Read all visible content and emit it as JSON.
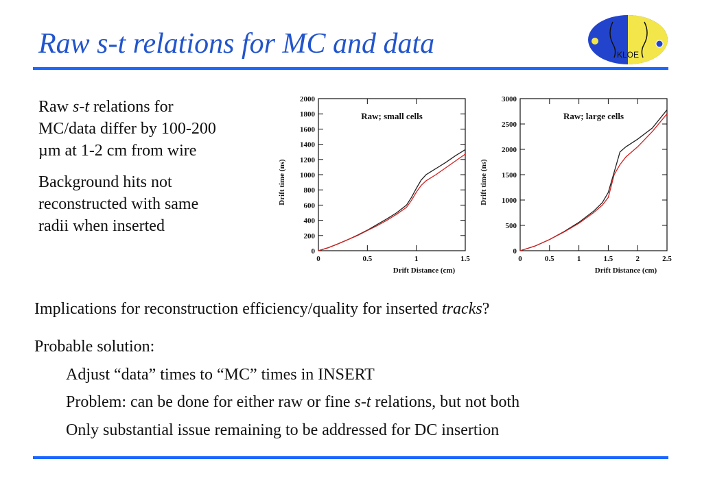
{
  "header": {
    "title": "Raw s-t relations for MC and data"
  },
  "logo": {
    "text": "KLOE"
  },
  "left": {
    "p1": {
      "a": "Raw ",
      "b": "s-t",
      "c": " relations for",
      "d": "MC/data differ by 100-200",
      "e": "µm at 1-2 cm from wire"
    },
    "p2": {
      "l1": "Background hits not",
      "l2": "reconstructed with same",
      "l3": "radii when inserted"
    }
  },
  "chart_data": [
    {
      "type": "line",
      "title": "Raw; small cells",
      "xlabel": "Drift Distance (cm)",
      "ylabel": "Drift time (ns)",
      "xlim": [
        0,
        1.5
      ],
      "ylim": [
        0,
        2000
      ],
      "xticks": [
        "0",
        "0.5",
        "1",
        "1.5"
      ],
      "yticks": [
        "0",
        "200",
        "400",
        "600",
        "800",
        "1000",
        "1200",
        "1400",
        "1600",
        "1800",
        "2000"
      ],
      "grid": false,
      "series": [
        {
          "color": "#222222",
          "points": [
            [
              0,
              0
            ],
            [
              0.1,
              40
            ],
            [
              0.2,
              90
            ],
            [
              0.3,
              145
            ],
            [
              0.4,
              205
            ],
            [
              0.5,
              270
            ],
            [
              0.6,
              345
            ],
            [
              0.7,
              420
            ],
            [
              0.8,
              500
            ],
            [
              0.9,
              600
            ],
            [
              0.95,
              700
            ],
            [
              1.0,
              820
            ],
            [
              1.05,
              930
            ],
            [
              1.1,
              1000
            ],
            [
              1.2,
              1080
            ],
            [
              1.3,
              1160
            ],
            [
              1.4,
              1250
            ],
            [
              1.5,
              1330
            ]
          ]
        },
        {
          "color": "#d42020",
          "points": [
            [
              0,
              0
            ],
            [
              0.1,
              40
            ],
            [
              0.2,
              90
            ],
            [
              0.3,
              145
            ],
            [
              0.4,
              200
            ],
            [
              0.5,
              265
            ],
            [
              0.6,
              330
            ],
            [
              0.7,
              400
            ],
            [
              0.8,
              480
            ],
            [
              0.9,
              570
            ],
            [
              0.95,
              660
            ],
            [
              1.0,
              770
            ],
            [
              1.05,
              860
            ],
            [
              1.1,
              920
            ],
            [
              1.2,
              1000
            ],
            [
              1.3,
              1090
            ],
            [
              1.4,
              1180
            ],
            [
              1.5,
              1270
            ]
          ]
        }
      ]
    },
    {
      "type": "line",
      "title": "Raw; large cells",
      "xlabel": "Drift Distance (cm)",
      "ylabel": "Drift time (ns)",
      "xlim": [
        0,
        2.5
      ],
      "ylim": [
        0,
        3000
      ],
      "xticks": [
        "0",
        "0.5",
        "1",
        "1.5",
        "2",
        "2.5"
      ],
      "yticks": [
        "0",
        "500",
        "1000",
        "1500",
        "2000",
        "2500",
        "3000"
      ],
      "grid": false,
      "series": [
        {
          "color": "#222222",
          "points": [
            [
              0,
              0
            ],
            [
              0.25,
              90
            ],
            [
              0.5,
              220
            ],
            [
              0.75,
              380
            ],
            [
              1.0,
              560
            ],
            [
              1.25,
              780
            ],
            [
              1.4,
              950
            ],
            [
              1.5,
              1150
            ],
            [
              1.6,
              1550
            ],
            [
              1.7,
              1950
            ],
            [
              1.8,
              2050
            ],
            [
              2.0,
              2200
            ],
            [
              2.25,
              2420
            ],
            [
              2.5,
              2780
            ]
          ]
        },
        {
          "color": "#d42020",
          "points": [
            [
              0,
              0
            ],
            [
              0.25,
              90
            ],
            [
              0.5,
              220
            ],
            [
              0.75,
              370
            ],
            [
              1.0,
              540
            ],
            [
              1.25,
              750
            ],
            [
              1.4,
              900
            ],
            [
              1.5,
              1050
            ],
            [
              1.6,
              1500
            ],
            [
              1.7,
              1700
            ],
            [
              1.8,
              1850
            ],
            [
              2.0,
              2050
            ],
            [
              2.25,
              2350
            ],
            [
              2.5,
              2700
            ]
          ]
        }
      ]
    }
  ],
  "body": {
    "line1": {
      "a": "Implications for reconstruction efficiency/quality for inserted ",
      "b": "tracks",
      "c": "?"
    },
    "line2": "Probable solution:",
    "line3": "Adjust “data” times to “MC” times in INSERT",
    "line4": {
      "a": "Problem: can be done for either raw or fine ",
      "b": "s-t",
      "c": " relations, but not both"
    },
    "line5": "Only substantial issue remaining to be addressed for DC insertion"
  }
}
